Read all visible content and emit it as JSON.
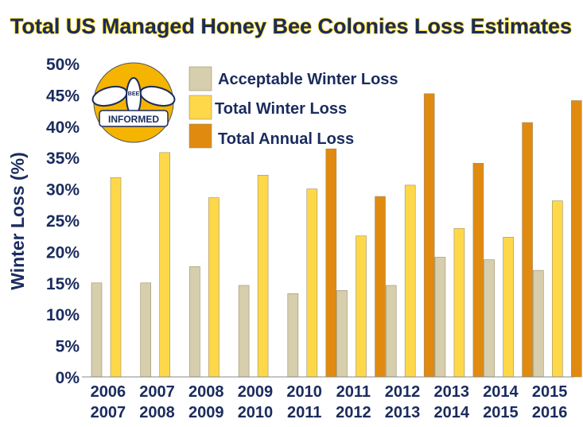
{
  "chart_data": {
    "type": "bar",
    "title": "Total US Managed Honey Bee Colonies Loss Estimates",
    "ylabel": "Winter Loss (%)",
    "xlabel": "",
    "ylim": [
      0,
      50
    ],
    "yticks": [
      "0%",
      "5%",
      "10%",
      "15%",
      "20%",
      "25%",
      "30%",
      "35%",
      "40%",
      "45%",
      "50%"
    ],
    "grid": false,
    "legend_placement": "top-left",
    "categories": [
      [
        "2006",
        "2007"
      ],
      [
        "2007",
        "2008"
      ],
      [
        "2008",
        "2009"
      ],
      [
        "2009",
        "2010"
      ],
      [
        "2010",
        "2011"
      ],
      [
        "2011",
        "2012"
      ],
      [
        "2012",
        "2013"
      ],
      [
        "2013",
        "2014"
      ],
      [
        "2014",
        "2015"
      ],
      [
        "2015",
        "2016"
      ]
    ],
    "series": [
      {
        "name": "Acceptable Winter Loss",
        "color": "#d6ceac",
        "values": [
          15.0,
          15.0,
          17.6,
          14.6,
          13.3,
          13.8,
          14.6,
          19.1,
          18.7,
          17.0
        ]
      },
      {
        "name": "Total Winter Loss",
        "color": "#ffd84a",
        "values": [
          31.8,
          35.8,
          28.6,
          32.2,
          30.0,
          22.5,
          30.6,
          23.7,
          22.3,
          28.1
        ]
      },
      {
        "name": "Total Annual Loss",
        "color": "#e08a10",
        "values": [
          null,
          null,
          null,
          null,
          36.4,
          28.8,
          45.2,
          34.1,
          40.6,
          44.1
        ]
      }
    ]
  },
  "logo": {
    "text_top": "BEE",
    "text_bottom": "INFORMED"
  },
  "colors": {
    "title_fill": "#1a2b5e",
    "title_outline": "#ffd700",
    "axis_text": "#1a2b5e",
    "axis_line": "#888888"
  }
}
